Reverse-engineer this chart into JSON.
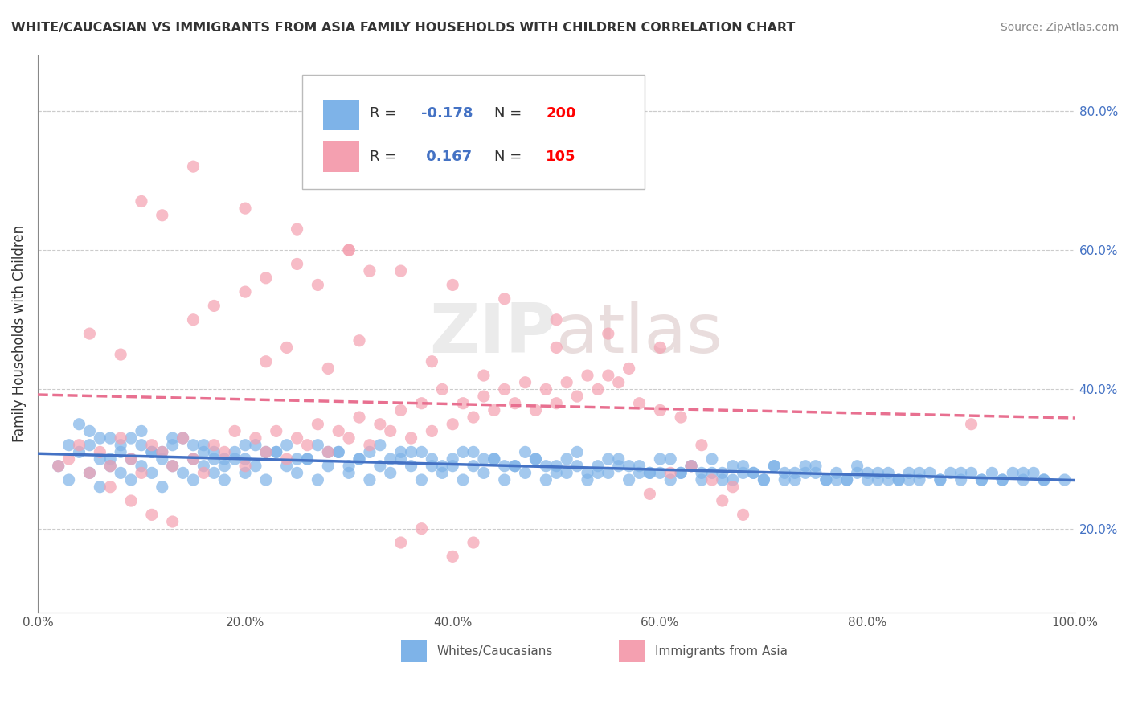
{
  "title": "WHITE/CAUCASIAN VS IMMIGRANTS FROM ASIA FAMILY HOUSEHOLDS WITH CHILDREN CORRELATION CHART",
  "source": "Source: ZipAtlas.com",
  "ylabel": "Family Households with Children",
  "xlabel": "",
  "watermark": "ZIPAtlas",
  "xlim": [
    0.0,
    1.0
  ],
  "ylim": [
    0.08,
    0.88
  ],
  "right_yticks": [
    0.2,
    0.4,
    0.6,
    0.8
  ],
  "right_yticklabels": [
    "20.0%",
    "40.0%",
    "60.0%",
    "80.0%"
  ],
  "xticks": [
    0.0,
    0.2,
    0.4,
    0.6,
    0.8,
    1.0
  ],
  "xticklabels": [
    "0.0%",
    "20.0%",
    "40.0%",
    "60.0%",
    "80.0%",
    "100.0%"
  ],
  "series": [
    {
      "name": "Whites/Caucasians",
      "color": "#7eb3e8",
      "R": -0.178,
      "N": 200,
      "trend_color": "#4472c4",
      "trend_style": "solid"
    },
    {
      "name": "Immigrants from Asia",
      "color": "#f4a0b0",
      "R": 0.167,
      "N": 105,
      "trend_color": "#e87090",
      "trend_style": "dashed"
    }
  ],
  "legend_R_color": "#4472c4",
  "legend_N_color": "#ff0000",
  "blue_scatter_x": [
    0.02,
    0.03,
    0.04,
    0.05,
    0.05,
    0.06,
    0.06,
    0.07,
    0.07,
    0.08,
    0.08,
    0.09,
    0.09,
    0.1,
    0.1,
    0.11,
    0.11,
    0.12,
    0.12,
    0.13,
    0.13,
    0.14,
    0.15,
    0.15,
    0.16,
    0.16,
    0.17,
    0.17,
    0.18,
    0.18,
    0.19,
    0.2,
    0.2,
    0.21,
    0.22,
    0.23,
    0.24,
    0.25,
    0.26,
    0.27,
    0.28,
    0.29,
    0.3,
    0.31,
    0.32,
    0.33,
    0.34,
    0.35,
    0.36,
    0.37,
    0.38,
    0.39,
    0.4,
    0.41,
    0.42,
    0.43,
    0.44,
    0.45,
    0.46,
    0.47,
    0.48,
    0.49,
    0.5,
    0.51,
    0.52,
    0.53,
    0.54,
    0.55,
    0.56,
    0.57,
    0.58,
    0.59,
    0.6,
    0.61,
    0.62,
    0.63,
    0.64,
    0.65,
    0.66,
    0.67,
    0.68,
    0.69,
    0.7,
    0.71,
    0.72,
    0.73,
    0.74,
    0.75,
    0.76,
    0.77,
    0.78,
    0.79,
    0.8,
    0.81,
    0.82,
    0.83,
    0.84,
    0.85,
    0.86,
    0.87,
    0.88,
    0.89,
    0.9,
    0.91,
    0.92,
    0.93,
    0.94,
    0.95,
    0.96,
    0.97,
    0.03,
    0.05,
    0.07,
    0.09,
    0.11,
    0.13,
    0.15,
    0.17,
    0.19,
    0.21,
    0.23,
    0.25,
    0.27,
    0.29,
    0.31,
    0.33,
    0.35,
    0.37,
    0.39,
    0.41,
    0.43,
    0.45,
    0.47,
    0.49,
    0.51,
    0.53,
    0.55,
    0.57,
    0.59,
    0.61,
    0.63,
    0.65,
    0.67,
    0.69,
    0.71,
    0.73,
    0.75,
    0.77,
    0.79,
    0.81,
    0.83,
    0.85,
    0.87,
    0.89,
    0.91,
    0.93,
    0.95,
    0.97,
    0.99,
    0.04,
    0.06,
    0.08,
    0.1,
    0.12,
    0.14,
    0.16,
    0.18,
    0.2,
    0.22,
    0.24,
    0.26,
    0.28,
    0.3,
    0.32,
    0.34,
    0.36,
    0.38,
    0.4,
    0.42,
    0.44,
    0.46,
    0.48,
    0.5,
    0.52,
    0.54,
    0.56,
    0.58,
    0.6,
    0.62,
    0.64,
    0.66,
    0.68,
    0.7,
    0.72,
    0.74,
    0.76,
    0.78,
    0.8,
    0.82,
    0.84
  ],
  "blue_scatter_y": [
    0.29,
    0.27,
    0.31,
    0.28,
    0.32,
    0.3,
    0.26,
    0.29,
    0.33,
    0.28,
    0.31,
    0.3,
    0.27,
    0.29,
    0.32,
    0.31,
    0.28,
    0.3,
    0.26,
    0.29,
    0.32,
    0.28,
    0.3,
    0.27,
    0.29,
    0.31,
    0.28,
    0.3,
    0.29,
    0.27,
    0.31,
    0.28,
    0.3,
    0.29,
    0.27,
    0.31,
    0.29,
    0.28,
    0.3,
    0.27,
    0.29,
    0.31,
    0.28,
    0.3,
    0.27,
    0.29,
    0.28,
    0.31,
    0.29,
    0.27,
    0.3,
    0.28,
    0.29,
    0.27,
    0.31,
    0.28,
    0.3,
    0.27,
    0.29,
    0.28,
    0.3,
    0.27,
    0.29,
    0.28,
    0.31,
    0.27,
    0.29,
    0.28,
    0.3,
    0.27,
    0.29,
    0.28,
    0.3,
    0.27,
    0.28,
    0.29,
    0.27,
    0.3,
    0.28,
    0.27,
    0.29,
    0.28,
    0.27,
    0.29,
    0.28,
    0.27,
    0.29,
    0.28,
    0.27,
    0.28,
    0.27,
    0.29,
    0.28,
    0.27,
    0.28,
    0.27,
    0.28,
    0.27,
    0.28,
    0.27,
    0.28,
    0.27,
    0.28,
    0.27,
    0.28,
    0.27,
    0.28,
    0.27,
    0.28,
    0.27,
    0.32,
    0.34,
    0.3,
    0.33,
    0.31,
    0.33,
    0.32,
    0.31,
    0.3,
    0.32,
    0.31,
    0.3,
    0.32,
    0.31,
    0.3,
    0.32,
    0.3,
    0.31,
    0.29,
    0.31,
    0.3,
    0.29,
    0.31,
    0.29,
    0.3,
    0.28,
    0.3,
    0.29,
    0.28,
    0.3,
    0.29,
    0.28,
    0.29,
    0.28,
    0.29,
    0.28,
    0.29,
    0.27,
    0.28,
    0.28,
    0.27,
    0.28,
    0.27,
    0.28,
    0.27,
    0.27,
    0.28,
    0.27,
    0.27,
    0.35,
    0.33,
    0.32,
    0.34,
    0.31,
    0.33,
    0.32,
    0.3,
    0.32,
    0.31,
    0.32,
    0.3,
    0.31,
    0.29,
    0.31,
    0.3,
    0.31,
    0.29,
    0.3,
    0.29,
    0.3,
    0.29,
    0.3,
    0.28,
    0.29,
    0.28,
    0.29,
    0.28,
    0.28,
    0.28,
    0.28,
    0.27,
    0.28,
    0.27,
    0.27,
    0.28,
    0.27,
    0.27,
    0.27,
    0.27,
    0.27
  ],
  "pink_scatter_x": [
    0.02,
    0.03,
    0.04,
    0.05,
    0.06,
    0.07,
    0.08,
    0.09,
    0.1,
    0.11,
    0.12,
    0.13,
    0.14,
    0.15,
    0.16,
    0.17,
    0.18,
    0.19,
    0.2,
    0.21,
    0.22,
    0.23,
    0.24,
    0.25,
    0.26,
    0.27,
    0.28,
    0.29,
    0.3,
    0.31,
    0.32,
    0.33,
    0.34,
    0.35,
    0.36,
    0.37,
    0.38,
    0.39,
    0.4,
    0.41,
    0.42,
    0.43,
    0.44,
    0.45,
    0.46,
    0.47,
    0.48,
    0.49,
    0.5,
    0.51,
    0.52,
    0.53,
    0.54,
    0.55,
    0.56,
    0.57,
    0.58,
    0.59,
    0.6,
    0.61,
    0.62,
    0.63,
    0.64,
    0.65,
    0.66,
    0.67,
    0.68,
    0.9,
    0.05,
    0.08,
    0.1,
    0.12,
    0.15,
    0.17,
    0.2,
    0.22,
    0.25,
    0.27,
    0.3,
    0.32,
    0.35,
    0.37,
    0.4,
    0.42,
    0.15,
    0.2,
    0.25,
    0.3,
    0.35,
    0.4,
    0.45,
    0.5,
    0.55,
    0.6,
    0.07,
    0.09,
    0.11,
    0.13,
    0.22,
    0.24,
    0.28,
    0.31,
    0.38,
    0.43,
    0.5
  ],
  "pink_scatter_y": [
    0.29,
    0.3,
    0.32,
    0.28,
    0.31,
    0.29,
    0.33,
    0.3,
    0.28,
    0.32,
    0.31,
    0.29,
    0.33,
    0.3,
    0.28,
    0.32,
    0.31,
    0.34,
    0.29,
    0.33,
    0.31,
    0.34,
    0.3,
    0.33,
    0.32,
    0.35,
    0.31,
    0.34,
    0.33,
    0.36,
    0.32,
    0.35,
    0.34,
    0.37,
    0.33,
    0.38,
    0.34,
    0.4,
    0.35,
    0.38,
    0.36,
    0.39,
    0.37,
    0.4,
    0.38,
    0.41,
    0.37,
    0.4,
    0.38,
    0.41,
    0.39,
    0.42,
    0.4,
    0.42,
    0.41,
    0.43,
    0.38,
    0.25,
    0.37,
    0.28,
    0.36,
    0.29,
    0.32,
    0.27,
    0.24,
    0.26,
    0.22,
    0.35,
    0.48,
    0.45,
    0.67,
    0.65,
    0.5,
    0.52,
    0.54,
    0.56,
    0.58,
    0.55,
    0.6,
    0.57,
    0.18,
    0.2,
    0.16,
    0.18,
    0.72,
    0.66,
    0.63,
    0.6,
    0.57,
    0.55,
    0.53,
    0.5,
    0.48,
    0.46,
    0.26,
    0.24,
    0.22,
    0.21,
    0.44,
    0.46,
    0.43,
    0.47,
    0.44,
    0.42,
    0.46
  ]
}
